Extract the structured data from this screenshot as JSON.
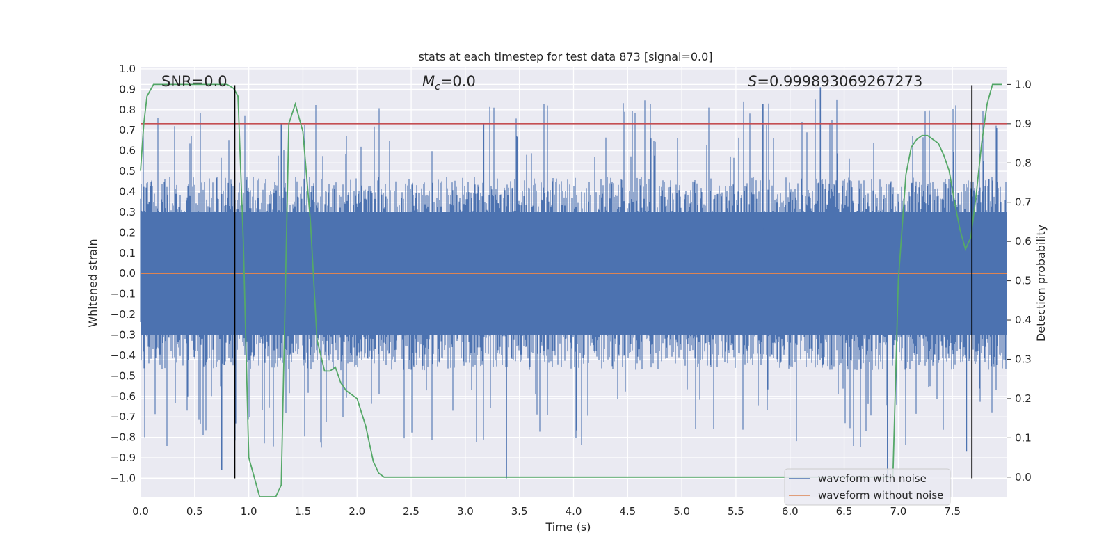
{
  "chart_data": {
    "type": "line",
    "title": "stats at each timestep for test data 873 [signal=0.0]",
    "xlabel": "Time (s)",
    "ylabel_left": "Whitened strain",
    "ylabel_right": "Detection probability",
    "xlim": [
      0.0,
      8.0
    ],
    "ylim_left": [
      -1.09,
      1.01
    ],
    "ylim_right": [
      -0.05,
      1.045
    ],
    "x_ticks": [
      0.0,
      0.5,
      1.0,
      1.5,
      2.0,
      2.5,
      3.0,
      3.5,
      4.0,
      4.5,
      5.0,
      5.5,
      6.0,
      6.5,
      7.0,
      7.5
    ],
    "x_tick_labels": [
      "0.0",
      "0.5",
      "1.0",
      "1.5",
      "2.0",
      "2.5",
      "3.0",
      "3.5",
      "4.0",
      "4.5",
      "5.0",
      "5.5",
      "6.0",
      "6.5",
      "7.0",
      "7.5"
    ],
    "y_left_ticks": [
      1.0,
      0.9,
      0.8,
      0.7,
      0.6,
      0.5,
      0.4,
      0.3,
      0.2,
      0.1,
      0.0,
      -0.1,
      -0.2,
      -0.3,
      -0.4,
      -0.5,
      -0.6,
      -0.7,
      -0.8,
      -0.9,
      -1.0
    ],
    "y_left_tick_labels": [
      "1.0",
      "0.9",
      "0.8",
      "0.7",
      "0.6",
      "0.5",
      "0.4",
      "0.3",
      "0.2",
      "0.1",
      "0.0",
      "−0.1",
      "−0.2",
      "−0.3",
      "−0.4",
      "−0.5",
      "−0.6",
      "−0.7",
      "−0.8",
      "−0.9",
      "−1.0"
    ],
    "y_right_ticks": [
      1.0,
      0.9,
      0.8,
      0.7,
      0.6,
      0.5,
      0.4,
      0.3,
      0.2,
      0.1,
      0.0
    ],
    "y_right_tick_labels": [
      "1.0",
      "0.9",
      "0.8",
      "0.7",
      "0.6",
      "0.5",
      "0.4",
      "0.3",
      "0.2",
      "0.1",
      "0.0"
    ],
    "grid": true,
    "legend_position": "lower-right",
    "annotations": {
      "snr_label": "SNR=0.0",
      "mc_symbol": "M",
      "mc_subscript": "c",
      "mc_value": "=0.0",
      "s_symbol": "S",
      "s_value": "=0.999893069267273"
    },
    "series": [
      {
        "name": "waveform with noise",
        "axis": "left",
        "color": "#4c72b0",
        "style": "noise",
        "envelope_top_typical": 0.45,
        "envelope_bottom_typical": -0.45,
        "max": 0.91,
        "min": -1.0
      },
      {
        "name": "waveform without noise",
        "axis": "left",
        "color": "#dd8452",
        "x": [
          0.0,
          8.0
        ],
        "y": [
          0.0,
          0.0
        ]
      },
      {
        "axis": "right",
        "color": "#55a868",
        "x": [
          0.0,
          0.03,
          0.06,
          0.12,
          0.2,
          0.3,
          0.4,
          0.5,
          0.6,
          0.7,
          0.8,
          0.86,
          0.9,
          0.95,
          1.0,
          1.05,
          1.1,
          1.15,
          1.2,
          1.25,
          1.3,
          1.37,
          1.43,
          1.5,
          1.57,
          1.63,
          1.7,
          1.75,
          1.8,
          1.85,
          1.9,
          2.0,
          2.08,
          2.15,
          2.2,
          2.25,
          2.3,
          3.0,
          4.0,
          5.0,
          6.0,
          6.5,
          6.8,
          6.95,
          7.0,
          7.07,
          7.12,
          7.17,
          7.22,
          7.27,
          7.32,
          7.37,
          7.42,
          7.47,
          7.52,
          7.57,
          7.62,
          7.67,
          7.72,
          7.77,
          7.82,
          7.87,
          7.92,
          7.96
        ],
        "y": [
          0.78,
          0.9,
          0.97,
          1.0,
          1.0,
          1.0,
          1.0,
          1.0,
          1.0,
          1.0,
          1.0,
          0.99,
          0.97,
          0.6,
          0.05,
          0.0,
          -0.05,
          -0.05,
          -0.05,
          -0.05,
          -0.02,
          0.9,
          0.95,
          0.88,
          0.65,
          0.35,
          0.27,
          0.27,
          0.28,
          0.24,
          0.22,
          0.2,
          0.13,
          0.04,
          0.01,
          0.0,
          0.0,
          0.0,
          0.0,
          0.0,
          0.0,
          0.0,
          0.0,
          0.0,
          0.5,
          0.77,
          0.84,
          0.86,
          0.87,
          0.87,
          0.86,
          0.85,
          0.82,
          0.78,
          0.7,
          0.63,
          0.58,
          0.61,
          0.72,
          0.85,
          0.95,
          1.0,
          1.0,
          1.0
        ]
      }
    ],
    "threshold_line": {
      "axis": "right",
      "value": 0.9,
      "color": "#c44e52"
    },
    "vertical_markers": {
      "x": [
        0.87,
        7.68
      ],
      "y_range_left": [
        -1.0,
        0.92
      ],
      "color": "#000000"
    }
  }
}
